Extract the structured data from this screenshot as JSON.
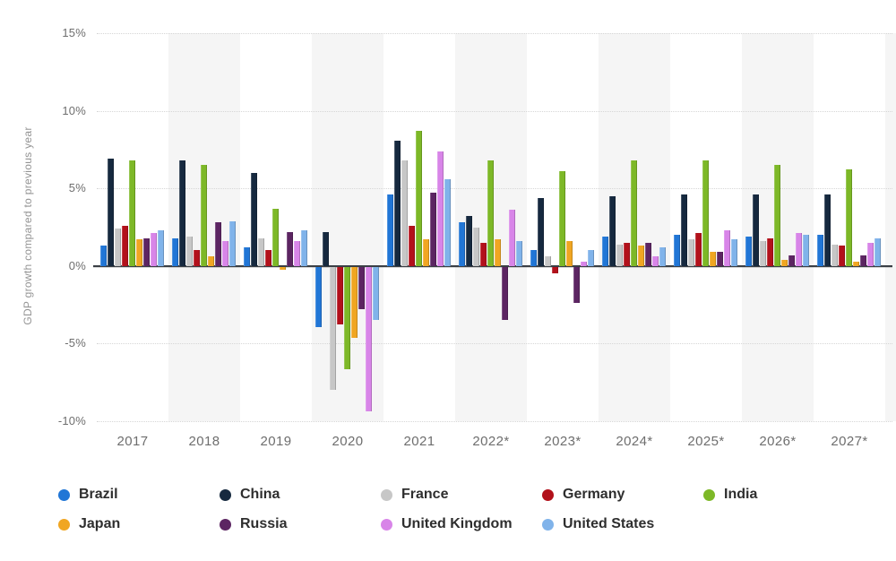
{
  "chart_data": {
    "type": "bar",
    "ylabel": "GDP growth compared to previous year",
    "ylim": [
      -10,
      15
    ],
    "grid": "dotted-horizontal",
    "legend_position": "bottom",
    "categories": [
      "2017",
      "2018",
      "2019",
      "2020",
      "2021",
      "2022*",
      "2023*",
      "2024*",
      "2025*",
      "2026*",
      "2027*"
    ],
    "yticks": [
      {
        "label": "15%",
        "value": 15
      },
      {
        "label": "10%",
        "value": 10
      },
      {
        "label": "5%",
        "value": 5
      },
      {
        "label": "0%",
        "value": 0
      },
      {
        "label": "-5%",
        "value": -5
      },
      {
        "label": "-10%",
        "value": -10
      }
    ],
    "series": [
      {
        "name": "Brazil",
        "color": "#2176d6",
        "values": [
          1.3,
          1.8,
          1.2,
          -3.9,
          4.6,
          2.8,
          1.0,
          1.9,
          2.0,
          1.9,
          2.0
        ]
      },
      {
        "name": "China",
        "color": "#16293f",
        "values": [
          6.9,
          6.8,
          6.0,
          2.2,
          8.1,
          3.2,
          4.4,
          4.5,
          4.6,
          4.6,
          4.6
        ]
      },
      {
        "name": "France",
        "color": "#c7c7c7",
        "values": [
          2.4,
          1.9,
          1.8,
          -7.9,
          6.8,
          2.5,
          0.6,
          1.4,
          1.7,
          1.6,
          1.4
        ]
      },
      {
        "name": "Germany",
        "color": "#b2111b",
        "values": [
          2.6,
          1.0,
          1.0,
          -3.7,
          2.6,
          1.5,
          -0.4,
          1.5,
          2.1,
          1.8,
          1.3
        ]
      },
      {
        "name": "India",
        "color": "#7db827",
        "values": [
          6.8,
          6.5,
          3.7,
          -6.6,
          8.7,
          6.8,
          6.1,
          6.8,
          6.8,
          6.5,
          6.2
        ]
      },
      {
        "name": "Japan",
        "color": "#f0a622",
        "values": [
          1.7,
          0.6,
          -0.2,
          -4.6,
          1.7,
          1.7,
          1.6,
          1.3,
          0.9,
          0.4,
          0.3
        ]
      },
      {
        "name": "Russia",
        "color": "#5c2562",
        "values": [
          1.8,
          2.8,
          2.2,
          -2.7,
          4.7,
          -3.4,
          -2.3,
          1.5,
          0.9,
          0.7,
          0.7
        ]
      },
      {
        "name": "United Kingdom",
        "color": "#d885e8",
        "values": [
          2.1,
          1.6,
          1.6,
          -9.3,
          7.4,
          3.6,
          0.3,
          0.6,
          2.3,
          2.1,
          1.5
        ]
      },
      {
        "name": "United States",
        "color": "#80b3ea",
        "values": [
          2.3,
          2.9,
          2.3,
          -3.4,
          5.6,
          1.6,
          1.0,
          1.2,
          1.7,
          2.0,
          1.8
        ]
      }
    ],
    "banded_categories": [
      "2018",
      "2020",
      "2022*",
      "2024*",
      "2026*"
    ],
    "style": {
      "background": "#ffffff",
      "band": "#f5f5f5",
      "grid": "#d6d6d6",
      "zero_line": "#3a3f45",
      "tick_text": "#6e6e6e",
      "axis_title_text": "#949494",
      "legend_text": "#2e2e2e"
    }
  }
}
